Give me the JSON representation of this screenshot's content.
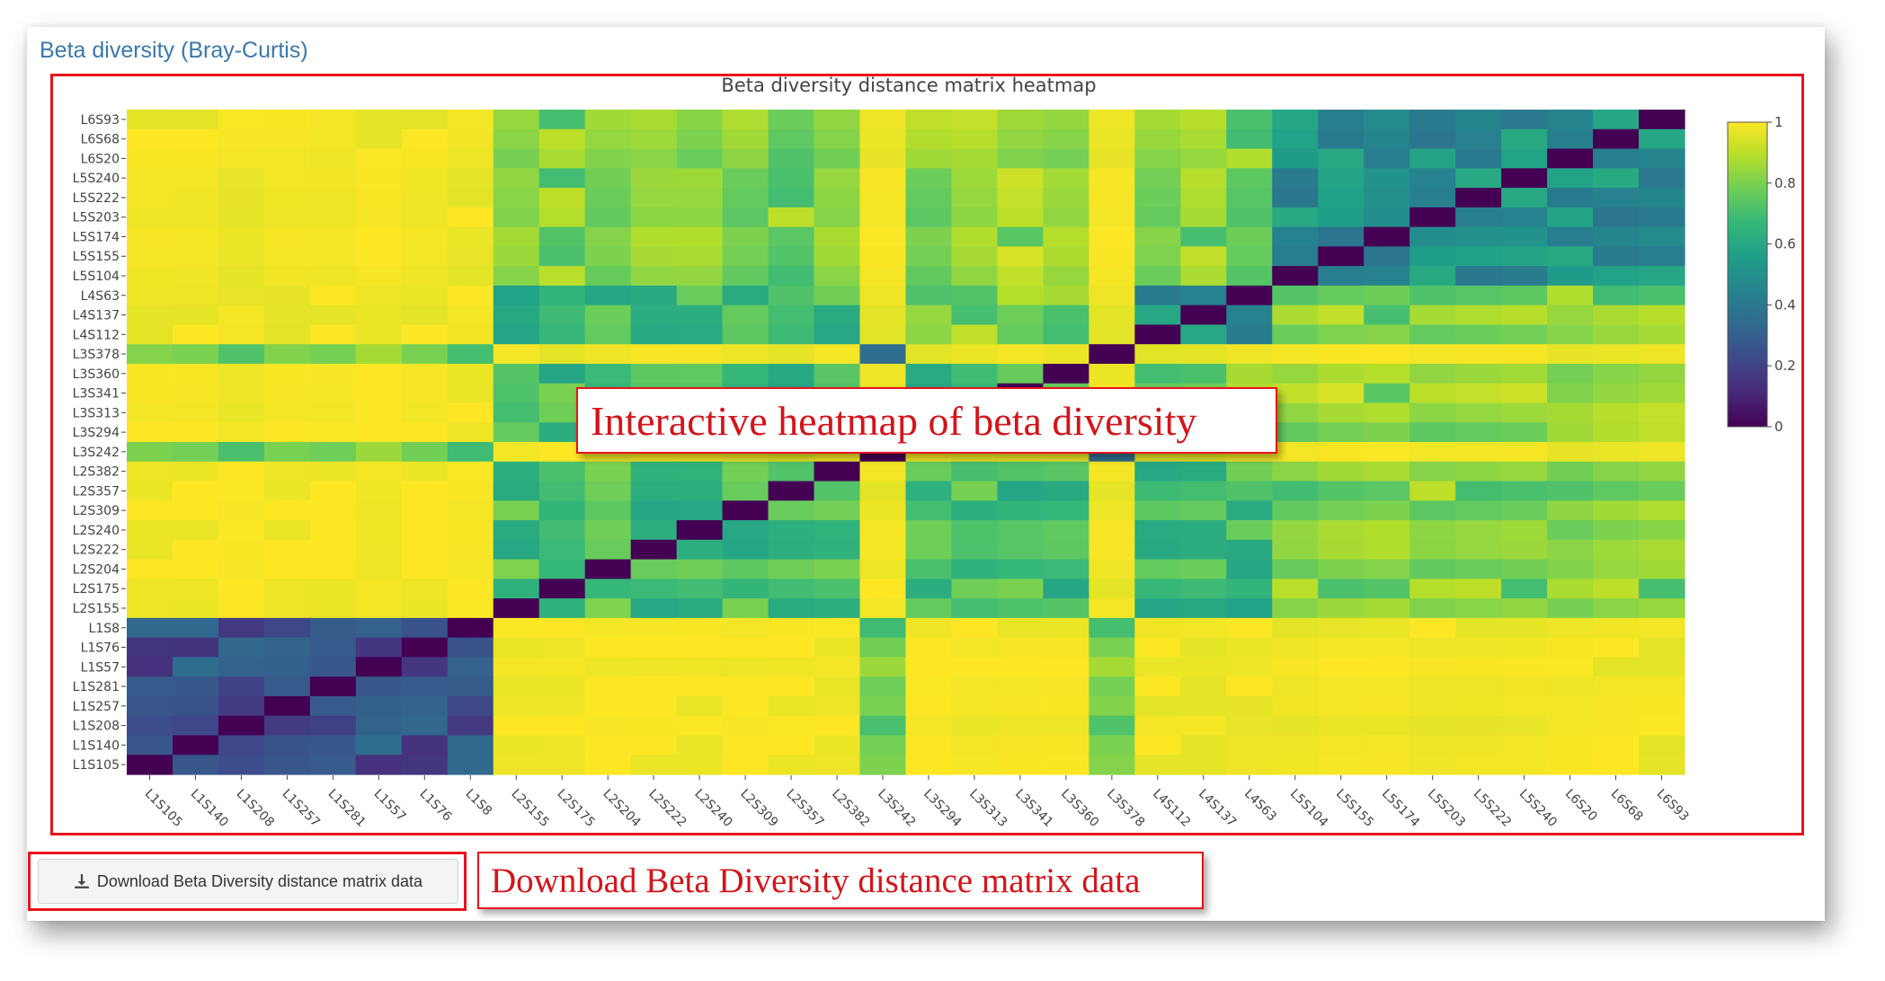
{
  "section_title": "Beta diversity (Bray-Curtis)",
  "download_button_label": "Download Beta Diversity distance matrix data",
  "callouts": {
    "heatmap": "Interactive heatmap of beta diversity",
    "download": "Download Beta Diversity distance matrix data"
  },
  "colors": {
    "annotation_red": "#e8131b",
    "title_blue": "#3a78ad"
  },
  "chart_data": {
    "type": "heatmap",
    "title": "Beta diversity distance matrix heatmap",
    "colorscale": "Viridis",
    "zlim": [
      0,
      1
    ],
    "colorbar_ticks": [
      "1",
      "0.8",
      "0.6",
      "0.4",
      "0.2",
      "0"
    ],
    "colorbar_tick_values": [
      1,
      0.8,
      0.6,
      0.4,
      0.2,
      0
    ],
    "samples": [
      "L1S105",
      "L1S140",
      "L1S208",
      "L1S257",
      "L1S281",
      "L1S57",
      "L1S76",
      "L1S8",
      "L2S155",
      "L2S175",
      "L2S204",
      "L2S222",
      "L2S240",
      "L2S309",
      "L2S357",
      "L2S382",
      "L3S242",
      "L3S294",
      "L3S313",
      "L3S341",
      "L3S360",
      "L3S378",
      "L4S112",
      "L4S137",
      "L4S63",
      "L5S104",
      "L5S155",
      "L5S174",
      "L5S203",
      "L5S222",
      "L5S240",
      "L6S20",
      "L6S68",
      "L6S93"
    ],
    "groups": {
      "L1": [
        "L1S105",
        "L1S140",
        "L1S208",
        "L1S257",
        "L1S281",
        "L1S57",
        "L1S76",
        "L1S8"
      ],
      "L2": [
        "L2S155",
        "L2S175",
        "L2S204",
        "L2S222",
        "L2S240",
        "L2S309",
        "L2S357",
        "L2S382"
      ],
      "L3a": [
        "L3S294",
        "L3S313",
        "L3S341",
        "L3S360"
      ],
      "L3b": [
        "L3S242",
        "L3S378"
      ],
      "L4": [
        "L4S112",
        "L4S137",
        "L4S63"
      ],
      "L56": [
        "L5S104",
        "L5S155",
        "L5S174",
        "L5S203",
        "L5S222",
        "L5S240",
        "L6S20",
        "L6S68",
        "L6S93"
      ]
    },
    "group_distance": {
      "L1-L1": 0.25,
      "L1-L2": 0.99,
      "L1-L3a": 0.99,
      "L1-L3b": 0.78,
      "L1-L4": 0.98,
      "L1-L56": 0.98,
      "L2-L2": 0.7,
      "L2-L3a": 0.7,
      "L2-L3b": 0.98,
      "L2-L4": 0.68,
      "L2-L56": 0.8,
      "L3a-L3a": 0.68,
      "L3a-L3b": 0.97,
      "L3a-L4": 0.8,
      "L3a-L56": 0.84,
      "L3b-L3b": 0.3,
      "L3b-L4": 0.97,
      "L3b-L56": 0.98,
      "L4-L4": 0.5,
      "L4-L56": 0.8,
      "L56-L56": 0.5
    },
    "x_tick_labels_rotation": 45
  }
}
